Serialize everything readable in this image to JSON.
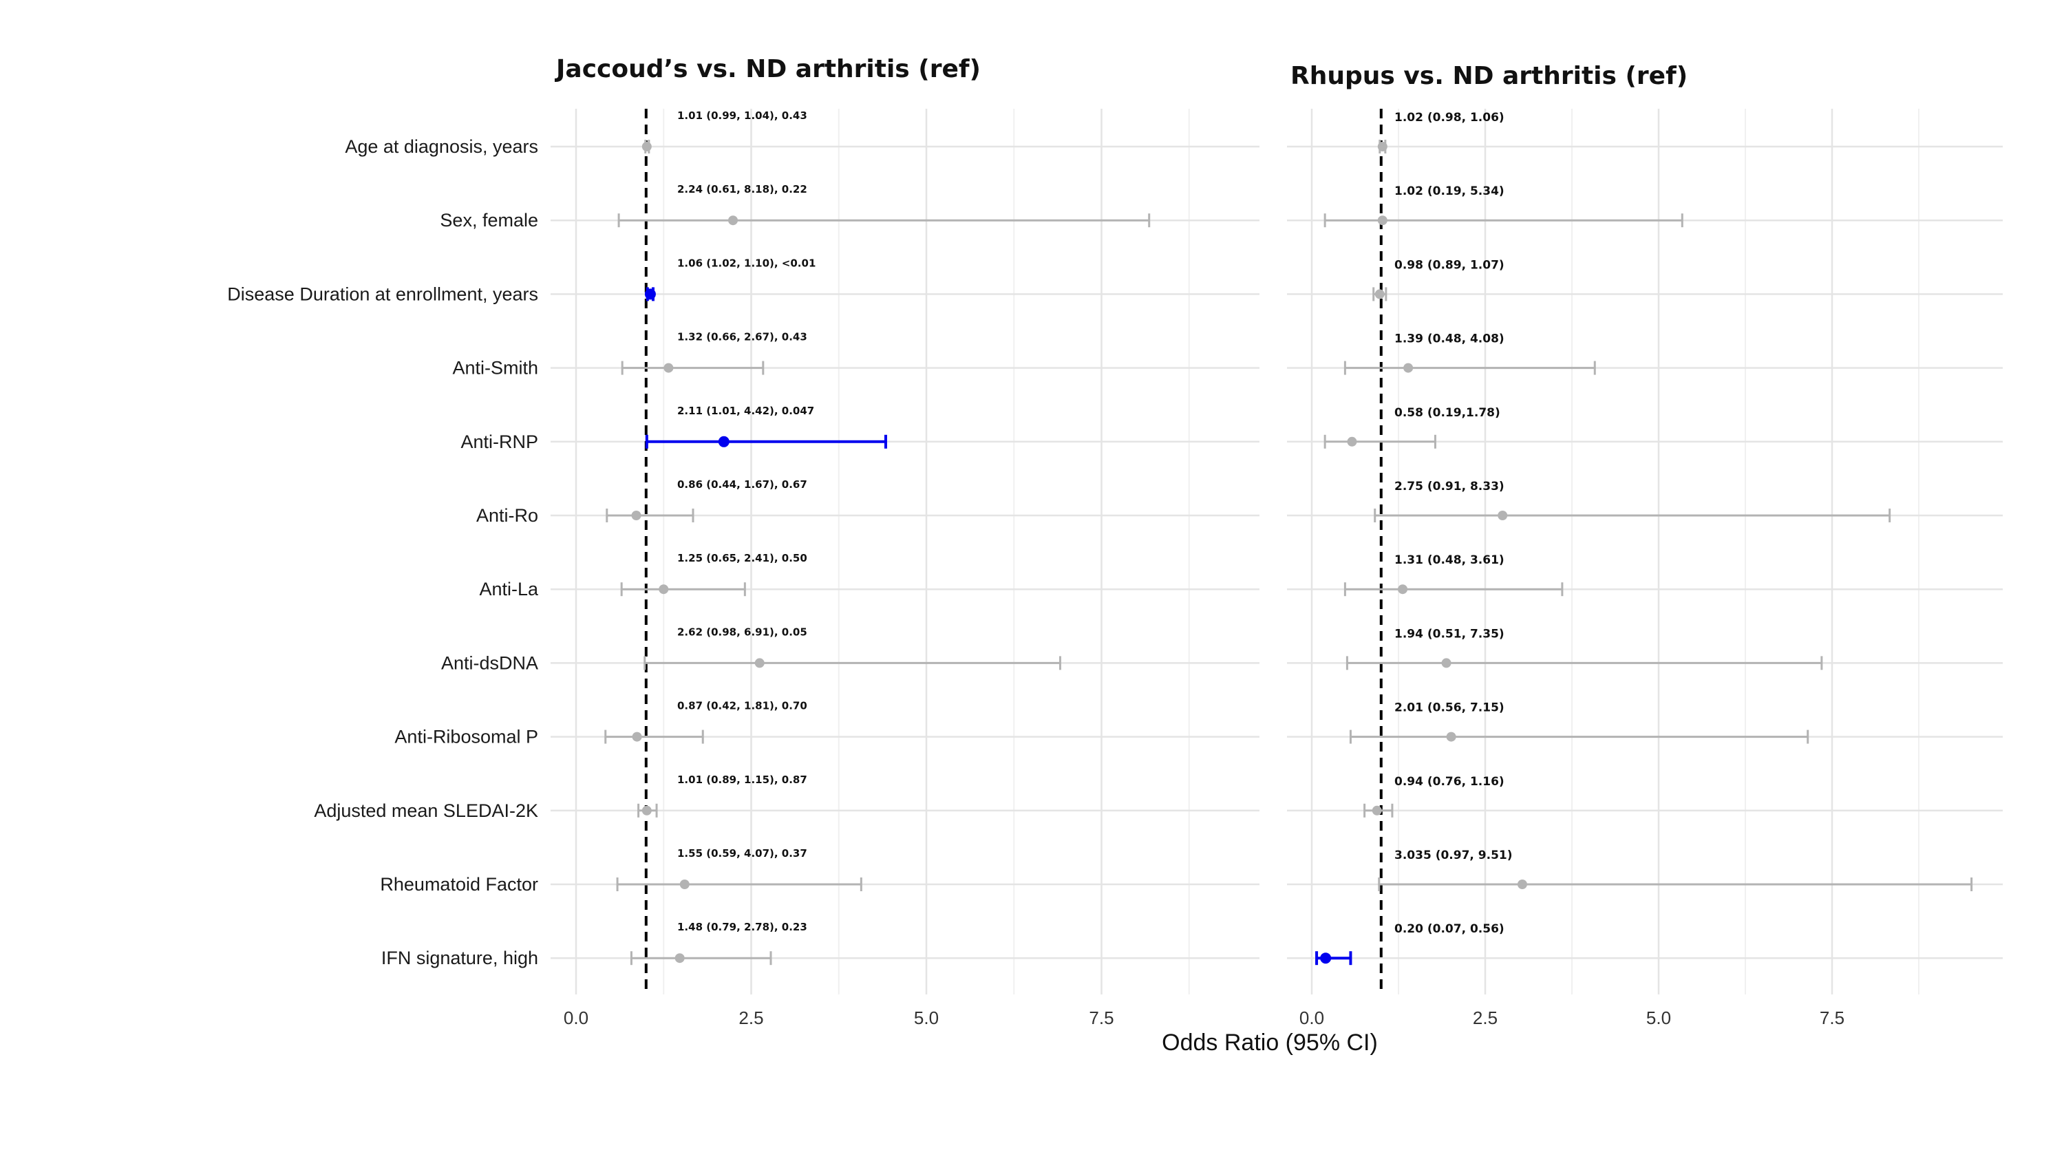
{
  "chart_data": [
    {
      "type": "forest",
      "title": "Jaccoud’s vs. ND arthritis (ref)",
      "xlabel": "",
      "xlim": [
        -0.2,
        9.5
      ],
      "xticks": [
        0.0,
        2.5,
        5.0,
        7.5
      ],
      "xtick_labels": [
        "0.0",
        "2.5",
        "5.0",
        "7.5"
      ],
      "reference_line": 1,
      "grid": true,
      "rows": [
        {
          "label": "Age at diagnosis, years",
          "or": 1.01,
          "lo": 0.99,
          "hi": 1.04,
          "text": "1.01 (0.99, 1.04), 0.43",
          "significant": false
        },
        {
          "label": "Sex, female",
          "or": 2.24,
          "lo": 0.61,
          "hi": 8.18,
          "text": "2.24 (0.61, 8.18), 0.22",
          "significant": false
        },
        {
          "label": "Disease Duration at enrollment, years",
          "or": 1.06,
          "lo": 1.02,
          "hi": 1.1,
          "text": "1.06 (1.02, 1.10), <0.01",
          "significant": true
        },
        {
          "label": "Anti-Smith",
          "or": 1.32,
          "lo": 0.66,
          "hi": 2.67,
          "text": "1.32 (0.66, 2.67), 0.43",
          "significant": false
        },
        {
          "label": "Anti-RNP",
          "or": 2.11,
          "lo": 1.01,
          "hi": 4.42,
          "text": "2.11 (1.01, 4.42), 0.047",
          "significant": true
        },
        {
          "label": "Anti-Ro",
          "or": 0.86,
          "lo": 0.44,
          "hi": 1.67,
          "text": "0.86 (0.44, 1.67), 0.67",
          "significant": false
        },
        {
          "label": "Anti-La",
          "or": 1.25,
          "lo": 0.65,
          "hi": 2.41,
          "text": "1.25 (0.65, 2.41), 0.50",
          "significant": false
        },
        {
          "label": "Anti-dsDNA",
          "or": 2.62,
          "lo": 0.98,
          "hi": 6.91,
          "text": "2.62 (0.98, 6.91), 0.05",
          "significant": false
        },
        {
          "label": "Anti-Ribosomal P",
          "or": 0.87,
          "lo": 0.42,
          "hi": 1.81,
          "text": "0.87 (0.42, 1.81), 0.70",
          "significant": false
        },
        {
          "label": "Adjusted mean SLEDAI-2K",
          "or": 1.01,
          "lo": 0.89,
          "hi": 1.15,
          "text": "1.01 (0.89, 1.15), 0.87",
          "significant": false
        },
        {
          "label": "Rheumatoid Factor",
          "or": 1.55,
          "lo": 0.59,
          "hi": 4.07,
          "text": "1.55 (0.59, 4.07), 0.37",
          "significant": false
        },
        {
          "label": "IFN signature, high",
          "or": 1.48,
          "lo": 0.79,
          "hi": 2.78,
          "text": "1.48 (0.79, 2.78), 0.23",
          "significant": false
        }
      ]
    },
    {
      "type": "forest",
      "title": "Rhupus vs. ND arthritis (ref)",
      "xlabel": "",
      "xlim": [
        -0.2,
        9.5
      ],
      "xticks": [
        0.0,
        2.5,
        5.0,
        7.5
      ],
      "xtick_labels": [
        "0.0",
        "2.5",
        "5.0",
        "7.5"
      ],
      "reference_line": 1,
      "grid": true,
      "rows": [
        {
          "label": "Age at diagnosis, years",
          "or": 1.02,
          "lo": 0.98,
          "hi": 1.06,
          "text": "1.02 (0.98, 1.06)",
          "significant": false
        },
        {
          "label": "Sex, female",
          "or": 1.02,
          "lo": 0.19,
          "hi": 5.34,
          "text": "1.02 (0.19, 5.34)",
          "significant": false
        },
        {
          "label": "Disease Duration at enrollment, years",
          "or": 0.98,
          "lo": 0.89,
          "hi": 1.07,
          "text": "0.98 (0.89, 1.07)",
          "significant": false
        },
        {
          "label": "Anti-Smith",
          "or": 1.39,
          "lo": 0.48,
          "hi": 4.08,
          "text": "1.39 (0.48, 4.08)",
          "significant": false
        },
        {
          "label": "Anti-RNP",
          "or": 0.58,
          "lo": 0.19,
          "hi": 1.78,
          "text": "0.58 (0.19,1.78)",
          "significant": false
        },
        {
          "label": "Anti-Ro",
          "or": 2.75,
          "lo": 0.91,
          "hi": 8.33,
          "text": "2.75 (0.91, 8.33)",
          "significant": false
        },
        {
          "label": "Anti-La",
          "or": 1.31,
          "lo": 0.48,
          "hi": 3.61,
          "text": "1.31 (0.48, 3.61)",
          "significant": false
        },
        {
          "label": "Anti-dsDNA",
          "or": 1.94,
          "lo": 0.51,
          "hi": 7.35,
          "text": "1.94 (0.51, 7.35)",
          "significant": false
        },
        {
          "label": "Anti-Ribosomal P",
          "or": 2.01,
          "lo": 0.56,
          "hi": 7.15,
          "text": "2.01 (0.56, 7.15)",
          "significant": false
        },
        {
          "label": "Adjusted mean SLEDAI-2K",
          "or": 0.94,
          "lo": 0.76,
          "hi": 1.16,
          "text": "0.94 (0.76, 1.16)",
          "significant": false
        },
        {
          "label": "Rheumatoid Factor",
          "or": 3.035,
          "lo": 0.97,
          "hi": 9.51,
          "text": "3.035 (0.97, 9.51)",
          "significant": false
        },
        {
          "label": "IFN signature, high",
          "or": 0.2,
          "lo": 0.07,
          "hi": 0.56,
          "text": "0.20 (0.07, 0.56)",
          "significant": true
        }
      ]
    }
  ],
  "shared_xlabel": "Odds Ratio (95% CI)",
  "colors": {
    "significant": "#0000ee",
    "nonsignificant": "#b3b3b3",
    "grid_major": "#e4e4e4",
    "grid_minor": "#f0f0f0",
    "reference_line": "#000000",
    "text": "#1a1a1a"
  }
}
